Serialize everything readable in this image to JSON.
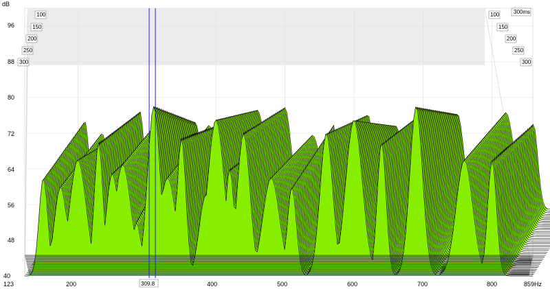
{
  "chart_data": {
    "type": "waterfall",
    "ylabel": "dB",
    "xunit": "Hz",
    "timeunit": "ms",
    "x_range": [
      123,
      859
    ],
    "y_range": [
      40,
      100
    ],
    "y_ticks": [
      "40",
      "48",
      "56",
      "64",
      "72",
      "80",
      "88",
      "96"
    ],
    "x_ticks": [
      "123",
      "200",
      "300",
      "400",
      "500",
      "600",
      "700",
      "800",
      "859Hz"
    ],
    "time_ticks_left": [
      "100",
      "150",
      "200",
      "250",
      "300"
    ],
    "time_ticks_right": [
      "100",
      "150",
      "200",
      "250",
      "300"
    ],
    "time_top_right": "300ms",
    "cursor_label": "309.8",
    "cursor_x_hz": 309.8,
    "slice_count": 40,
    "fill_color": "#88ee00",
    "line_color": "#111111",
    "front_peaks_hz": [
      150,
      175,
      200,
      230,
      250,
      265,
      285,
      310,
      330,
      350,
      385,
      400,
      420,
      440,
      480,
      510,
      560,
      600,
      640,
      690,
      760,
      800
    ],
    "front_peaks_db": [
      62,
      60,
      66,
      70,
      63,
      65,
      52,
      78,
      62,
      71,
      58,
      75,
      64,
      72,
      62,
      60,
      72,
      75,
      70,
      78,
      66,
      66
    ]
  }
}
